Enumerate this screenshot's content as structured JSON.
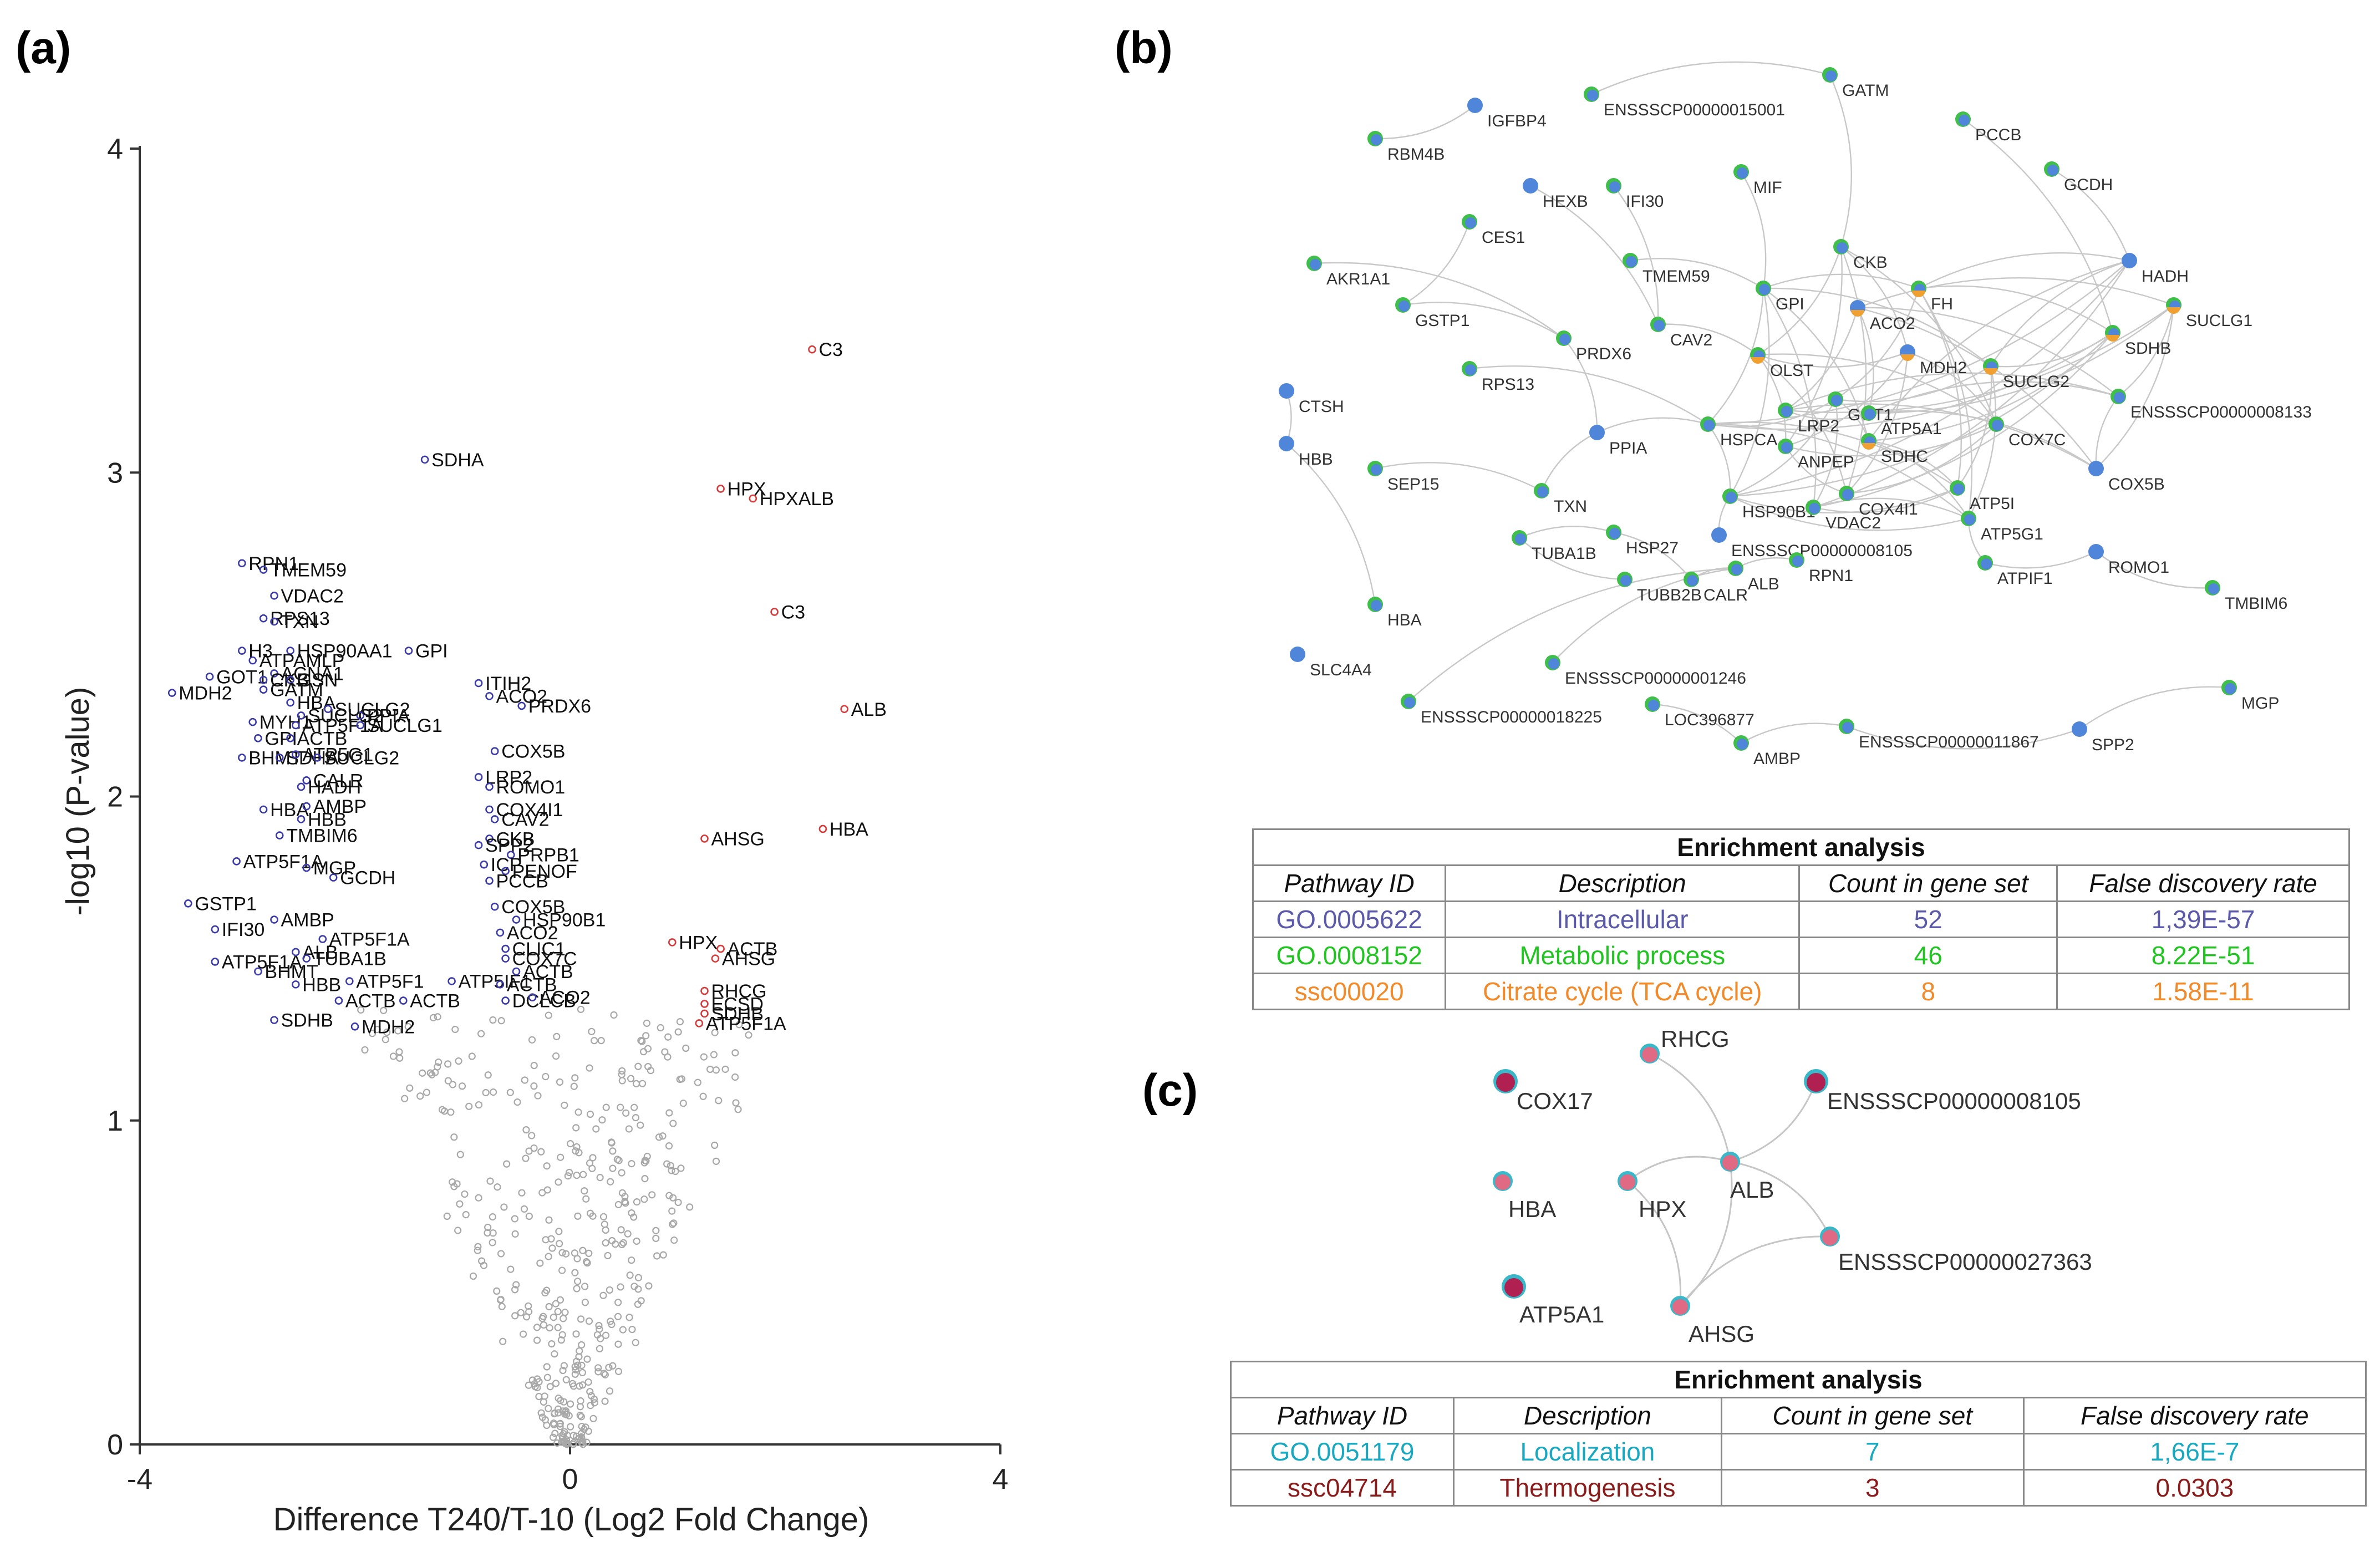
{
  "panels": {
    "a": "(a)",
    "b": "(b)",
    "c": "(c)"
  },
  "colors": {
    "down": "#3a3aa8",
    "up": "#d83a3a",
    "ns": "#a8a8a8",
    "node_blue": "#4f86d9",
    "node_green": "#3fbf4a",
    "node_orange": "#f0a030",
    "node_pink": "#e06a84",
    "node_teal": "#38b8c8"
  },
  "chart_data": {
    "type": "scatter",
    "title": "",
    "xlabel": "Difference T240/T-10 (Log2 Fold Change)",
    "ylabel": "-log10 (P-value)",
    "xlim": [
      -4,
      4
    ],
    "ylim": [
      0,
      4
    ],
    "xticks": [
      "-4",
      "0",
      "4"
    ],
    "yticks": [
      "0",
      "1",
      "2",
      "3",
      "4"
    ],
    "series": [
      {
        "name": "up",
        "points": [
          {
            "x": 2.25,
            "y": 3.38,
            "label": "C3"
          },
          {
            "x": 1.4,
            "y": 2.95,
            "label": "HPX"
          },
          {
            "x": 1.7,
            "y": 2.92,
            "label": "HPXALB"
          },
          {
            "x": 1.9,
            "y": 2.57,
            "label": "C3"
          },
          {
            "x": 2.55,
            "y": 2.27,
            "label": "ALB"
          },
          {
            "x": 2.35,
            "y": 1.9,
            "label": "HBA"
          },
          {
            "x": 1.25,
            "y": 1.87,
            "label": "AHSG"
          },
          {
            "x": 0.95,
            "y": 1.55,
            "label": "HPX"
          },
          {
            "x": 1.4,
            "y": 1.53,
            "label": "ACTB"
          },
          {
            "x": 1.35,
            "y": 1.5,
            "label": "AHSG"
          },
          {
            "x": 1.25,
            "y": 1.4,
            "label": "RHCG"
          },
          {
            "x": 1.25,
            "y": 1.36,
            "label": "ECSD"
          },
          {
            "x": 1.25,
            "y": 1.33,
            "label": "SDHB"
          },
          {
            "x": 1.2,
            "y": 1.3,
            "label": "ATP5F1A"
          }
        ]
      },
      {
        "name": "down",
        "points": [
          {
            "x": -1.35,
            "y": 3.04,
            "label": "SDHA"
          },
          {
            "x": -3.05,
            "y": 2.72,
            "label": "RPN1"
          },
          {
            "x": -2.85,
            "y": 2.7,
            "label": "TMEM59"
          },
          {
            "x": -2.75,
            "y": 2.62,
            "label": "VDAC2"
          },
          {
            "x": -2.85,
            "y": 2.55,
            "label": "RPS13"
          },
          {
            "x": -2.75,
            "y": 2.54,
            "label": "TXN"
          },
          {
            "x": -3.05,
            "y": 2.45,
            "label": "H3"
          },
          {
            "x": -2.6,
            "y": 2.45,
            "label": "HSP90AA1"
          },
          {
            "x": -2.95,
            "y": 2.42,
            "label": "ATPAMLP"
          },
          {
            "x": -2.75,
            "y": 2.38,
            "label": "ACNA1"
          },
          {
            "x": -3.35,
            "y": 2.37,
            "label": "GOT1"
          },
          {
            "x": -2.85,
            "y": 2.36,
            "label": "CKB"
          },
          {
            "x": -2.6,
            "y": 2.36,
            "label": "GSN"
          },
          {
            "x": -3.7,
            "y": 2.32,
            "label": "MDH2"
          },
          {
            "x": -2.85,
            "y": 2.33,
            "label": "GATM"
          },
          {
            "x": -2.6,
            "y": 2.29,
            "label": "HBA"
          },
          {
            "x": -2.95,
            "y": 2.23,
            "label": "MYH1"
          },
          {
            "x": -2.5,
            "y": 2.25,
            "label": "SUCLG2"
          },
          {
            "x": -2.55,
            "y": 2.22,
            "label": "ATP5F1A"
          },
          {
            "x": -2.9,
            "y": 2.18,
            "label": "GPI"
          },
          {
            "x": -2.6,
            "y": 2.18,
            "label": "ACTB"
          },
          {
            "x": -3.05,
            "y": 2.12,
            "label": "BHMT"
          },
          {
            "x": -2.7,
            "y": 2.12,
            "label": "SDHA"
          },
          {
            "x": -2.55,
            "y": 2.13,
            "label": "ATP5G1"
          },
          {
            "x": -2.35,
            "y": 2.12,
            "label": "SUCLG2"
          },
          {
            "x": -2.45,
            "y": 2.05,
            "label": "CALR"
          },
          {
            "x": -2.5,
            "y": 2.03,
            "label": "HADH"
          },
          {
            "x": -1.5,
            "y": 2.45,
            "label": "GPI"
          },
          {
            "x": -1.95,
            "y": 2.25,
            "label": "PPIA"
          },
          {
            "x": -2.25,
            "y": 2.27,
            "label": "SUCLG2"
          },
          {
            "x": -1.95,
            "y": 2.22,
            "label": "SUCLG1"
          },
          {
            "x": -0.85,
            "y": 2.35,
            "label": "ITIH2"
          },
          {
            "x": -0.75,
            "y": 2.31,
            "label": "ACO2"
          },
          {
            "x": -0.45,
            "y": 2.28,
            "label": "PRDX6"
          },
          {
            "x": -0.7,
            "y": 2.14,
            "label": "COX5B"
          },
          {
            "x": -0.85,
            "y": 2.06,
            "label": "LRP2"
          },
          {
            "x": -0.75,
            "y": 2.03,
            "label": "ROMO1"
          },
          {
            "x": -2.85,
            "y": 1.96,
            "label": "HBA"
          },
          {
            "x": -2.45,
            "y": 1.97,
            "label": "AMBP"
          },
          {
            "x": -2.5,
            "y": 1.93,
            "label": "HBB"
          },
          {
            "x": -2.7,
            "y": 1.88,
            "label": "TMBIM6"
          },
          {
            "x": -0.75,
            "y": 1.96,
            "label": "COX4I1"
          },
          {
            "x": -0.7,
            "y": 1.93,
            "label": "CAV2"
          },
          {
            "x": -0.75,
            "y": 1.87,
            "label": "CKB"
          },
          {
            "x": -0.85,
            "y": 1.85,
            "label": "SPP2"
          },
          {
            "x": -0.55,
            "y": 1.82,
            "label": "PRPB1"
          },
          {
            "x": -0.8,
            "y": 1.79,
            "label": "ICP"
          },
          {
            "x": -0.6,
            "y": 1.77,
            "label": "PENOF"
          },
          {
            "x": -0.75,
            "y": 1.74,
            "label": "PCCB"
          },
          {
            "x": -3.1,
            "y": 1.8,
            "label": "ATP5F1A"
          },
          {
            "x": -2.45,
            "y": 1.78,
            "label": "MGP"
          },
          {
            "x": -2.2,
            "y": 1.75,
            "label": "GCDH"
          },
          {
            "x": -3.55,
            "y": 1.67,
            "label": "GSTP1"
          },
          {
            "x": -2.75,
            "y": 1.62,
            "label": "AMBP"
          },
          {
            "x": -3.3,
            "y": 1.59,
            "label": "IFI30"
          },
          {
            "x": -2.3,
            "y": 1.56,
            "label": "ATP5F1A"
          },
          {
            "x": -3.3,
            "y": 1.49,
            "label": "ATP5F1A"
          },
          {
            "x": -2.55,
            "y": 1.52,
            "label": "ALB"
          },
          {
            "x": -2.9,
            "y": 1.46,
            "label": "BHMT"
          },
          {
            "x": -2.45,
            "y": 1.5,
            "label": "TUBA1B"
          },
          {
            "x": -2.55,
            "y": 1.42,
            "label": "HBB"
          },
          {
            "x": -2.05,
            "y": 1.43,
            "label": "ATP5F1"
          },
          {
            "x": -1.1,
            "y": 1.43,
            "label": "ATP5IF1"
          },
          {
            "x": -2.15,
            "y": 1.37,
            "label": "ACTB"
          },
          {
            "x": -1.55,
            "y": 1.37,
            "label": "ACTB"
          },
          {
            "x": -0.7,
            "y": 1.66,
            "label": "COX5B"
          },
          {
            "x": -0.5,
            "y": 1.62,
            "label": "HSP90B1"
          },
          {
            "x": -0.65,
            "y": 1.58,
            "label": "ACO2"
          },
          {
            "x": -0.6,
            "y": 1.53,
            "label": "CLIC1"
          },
          {
            "x": -0.6,
            "y": 1.5,
            "label": "COX7C"
          },
          {
            "x": -0.5,
            "y": 1.46,
            "label": "ACTB"
          },
          {
            "x": -0.65,
            "y": 1.42,
            "label": "ACTB"
          },
          {
            "x": -0.6,
            "y": 1.37,
            "label": "DCLCB"
          },
          {
            "x": -0.35,
            "y": 1.38,
            "label": "ACO2"
          },
          {
            "x": -2.75,
            "y": 1.31,
            "label": "SDHB"
          },
          {
            "x": -2.0,
            "y": 1.29,
            "label": "MDH2"
          }
        ]
      },
      {
        "name": "not-significant",
        "points": []
      }
    ]
  },
  "network_b": {
    "nodes": [
      "GATM",
      "IGFBP4",
      "ENSSSCP00000015001",
      "RBM4B",
      "PCCB",
      "GCDH",
      "HEXB",
      "IFI30",
      "MIF",
      "CES1",
      "CKB",
      "HADH",
      "TMEM59",
      "AKR1A1",
      "GSTP1",
      "GPI",
      "ACO2",
      "FH",
      "SUCLG1",
      "CAV2",
      "PRDX6",
      "MDH2",
      "SDHB",
      "RPS13",
      "OLST",
      "SUCLG2",
      "CTSH",
      "LRP2",
      "GOT1",
      "ATP5A1",
      "ENSSSCP00000008133",
      "PPIA",
      "HSPCA",
      "ANPEP",
      "SDHC",
      "COX7C",
      "HBB",
      "SEP15",
      "TXN",
      "COX4I1",
      "ATP5I",
      "COX5B",
      "HSP90B1",
      "VDAC2",
      "TUBA1B",
      "HSP27",
      "ENSSSCP00000008105",
      "ATP5G1",
      "RPN1",
      "ALB",
      "ATPIF1",
      "ROMO1",
      "TUBB2B",
      "CALR",
      "TMBIM6",
      "HBA",
      "SLC4A4",
      "ENSSSCP00000001246",
      "MGP",
      "ENSSSCP00000018225",
      "LOC396877",
      "SPP2",
      "AMBP",
      "ENSSSCP00000011867"
    ]
  },
  "table_b": {
    "title": "Enrichment analysis",
    "headers": [
      "Pathway ID",
      "Description",
      "Count in gene set",
      "False discovery rate"
    ],
    "rows": [
      {
        "id": "GO.0005622",
        "desc": "Intracellular",
        "count": "52",
        "fdr": "1,39E-57",
        "color": "#5a5aa8"
      },
      {
        "id": "GO.0008152",
        "desc": "Metabolic process",
        "count": "46",
        "fdr": "8.22E-51",
        "color": "#22c422"
      },
      {
        "id": "ssc00020",
        "desc": "Citrate cycle (TCA cycle)",
        "count": "8",
        "fdr": "1.58E-11",
        "color": "#f08a2a"
      }
    ]
  },
  "network_c": {
    "nodes": [
      "COX17",
      "RHCG",
      "ENSSSCP00000008105",
      "HBA",
      "HPX",
      "ALB",
      "ENSSSCP00000027363",
      "ATP5A1",
      "AHSG"
    ]
  },
  "table_c": {
    "title": "Enrichment analysis",
    "headers": [
      "Pathway ID",
      "Description",
      "Count in gene set",
      "False discovery rate"
    ],
    "rows": [
      {
        "id": "GO.0051179",
        "desc": "Localization",
        "count": "7",
        "fdr": "1,66E-7",
        "color": "#19a8c0"
      },
      {
        "id": "ssc04714",
        "desc": "Thermogenesis",
        "count": "3",
        "fdr": "0.0303",
        "color": "#8a1c1c"
      }
    ]
  }
}
